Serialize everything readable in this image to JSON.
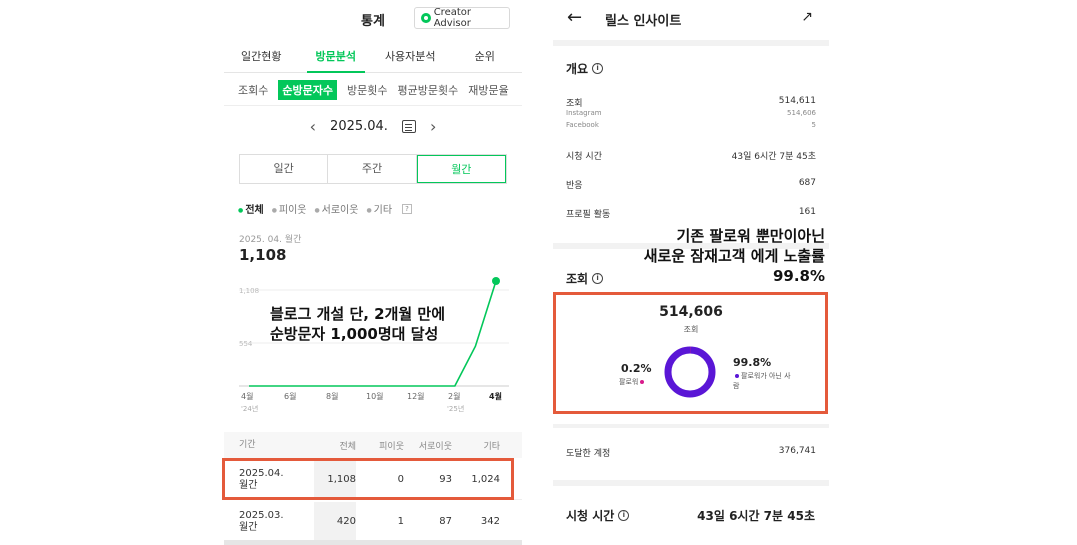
{
  "left": {
    "header": {
      "title": "통계",
      "creator_advisor": "Creator Advisor"
    },
    "tabs": [
      "일간현황",
      "방문분석",
      "사용자분석",
      "순위"
    ],
    "subtabs": [
      "조회수",
      "순방문자수",
      "방문횟수",
      "평균방문횟수",
      "재방문율"
    ],
    "date": "2025.04.",
    "segments": [
      "일간",
      "주간",
      "월간"
    ],
    "filters": [
      "전체",
      "피이웃",
      "서로이웃",
      "기타"
    ],
    "period_label": "2025. 04. 월간",
    "period_value": "1,108",
    "chart": {
      "ytick_top": "1,108",
      "ytick_mid": "554",
      "xlabels": [
        "4월",
        "6월",
        "8월",
        "10월",
        "12월",
        "2월",
        "4월"
      ],
      "xsub_left": "'24년",
      "xsub_right": "'25년"
    },
    "table": {
      "headers": [
        "기간",
        "전체",
        "피이웃",
        "서로이웃",
        "기타"
      ],
      "rows": [
        {
          "period1": "2025.04.",
          "period2": "월간",
          "all": "1,108",
          "pi": "0",
          "seo": "93",
          "etc": "1,024"
        },
        {
          "period1": "2025.03.",
          "period2": "월간",
          "all": "420",
          "pi": "1",
          "seo": "87",
          "etc": "342"
        }
      ]
    }
  },
  "annotation_left": {
    "line1": "블로그 개설 단, 2개월 만에",
    "line2": "순방문자 1,000명대 달성"
  },
  "right": {
    "title": "릴스 인사이트",
    "overview_title": "개요",
    "views_label": "조회",
    "views_value": "514,611",
    "instagram_label": "Instagram",
    "instagram_value": "514,606",
    "facebook_label": "Facebook",
    "facebook_value": "5",
    "watch_label": "시청 시간",
    "watch_value": "43일 6시간 7분 45초",
    "reaction_label": "반응",
    "reaction_value": "687",
    "profile_label": "프로필 활동",
    "profile_value": "161",
    "views_section_title": "조회",
    "views_total": "514,606",
    "views_total_label": "조회",
    "follower_pct": "0.2%",
    "follower_label": "팔로워",
    "nonfollower_pct": "99.8%",
    "nonfollower_label": "팔로워가 아닌 사람",
    "reached_label": "도달한 계정",
    "reached_value": "376,741",
    "bottom_watch_title": "시청 시간",
    "bottom_watch_value": "43일 6시간 7분 45초"
  },
  "annotation_right": {
    "line1": "기존 팔로워 뿐만이아닌",
    "line2": "새로운 잠재고객 에게 노출률 99.8%"
  },
  "chart_data": {
    "type": "line",
    "x": [
      "2024-04",
      "2024-05",
      "2024-06",
      "2024-07",
      "2024-08",
      "2024-09",
      "2024-10",
      "2024-11",
      "2024-12",
      "2025-01",
      "2025-02",
      "2025-03",
      "2025-04"
    ],
    "series": [
      {
        "values": [
          0,
          0,
          0,
          0,
          0,
          0,
          0,
          0,
          0,
          0,
          0,
          420,
          1108
        ]
      }
    ],
    "ylim": [
      0,
      1108
    ],
    "color": "#03c75a"
  },
  "colors": {
    "brand_green": "#03c75a",
    "highlight_box": "#e45a3b",
    "donut_purple": "#5a16d6",
    "follower_pink": "#d81b8b"
  }
}
